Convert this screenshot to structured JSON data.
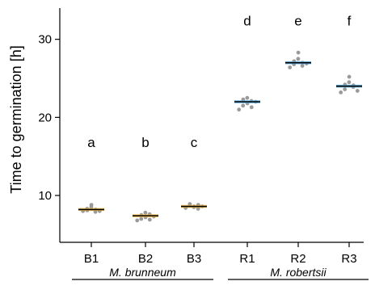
{
  "chart_data": {
    "type": "scatter",
    "ylabel": "Time to germination [h]",
    "xlabel": "",
    "ylim": [
      4,
      34
    ],
    "yticks": [
      10,
      20,
      30
    ],
    "categories": [
      "B1",
      "B2",
      "B3",
      "R1",
      "R2",
      "R3"
    ],
    "means": [
      8.2,
      7.4,
      8.6,
      22.0,
      27.0,
      24.0
    ],
    "significance_letters": [
      "a",
      "b",
      "c",
      "d",
      "e",
      "f"
    ],
    "points": [
      [
        8.0,
        8.3,
        8.1,
        8.5,
        8.8,
        7.9,
        8.2,
        8.0
      ],
      [
        6.8,
        7.0,
        7.5,
        7.8,
        7.2,
        7.6,
        6.9,
        7.3
      ],
      [
        8.4,
        8.7,
        8.9,
        8.5,
        8.6,
        8.3,
        8.8,
        8.6
      ],
      [
        21.0,
        21.5,
        22.3,
        22.5,
        21.8,
        22.1,
        21.3,
        22.0
      ],
      [
        26.4,
        26.8,
        27.2,
        27.5,
        28.3,
        26.6,
        27.0,
        26.9
      ],
      [
        23.2,
        23.6,
        24.2,
        24.5,
        25.2,
        23.9,
        24.1,
        23.4
      ]
    ],
    "groups": [
      {
        "label": "M. brunneum",
        "members": [
          "B1",
          "B2",
          "B3"
        ]
      },
      {
        "label": "M. robertsii",
        "members": [
          "R1",
          "R2",
          "R3"
        ]
      }
    ],
    "point_color": "#9a9a9a",
    "mean_line_color": "#000000",
    "error_band_colors": [
      "#f2b84a",
      "#f2b84a",
      "#f2b84a",
      "#5aaee0",
      "#5aaee0",
      "#5aaee0"
    ],
    "grid": false
  }
}
